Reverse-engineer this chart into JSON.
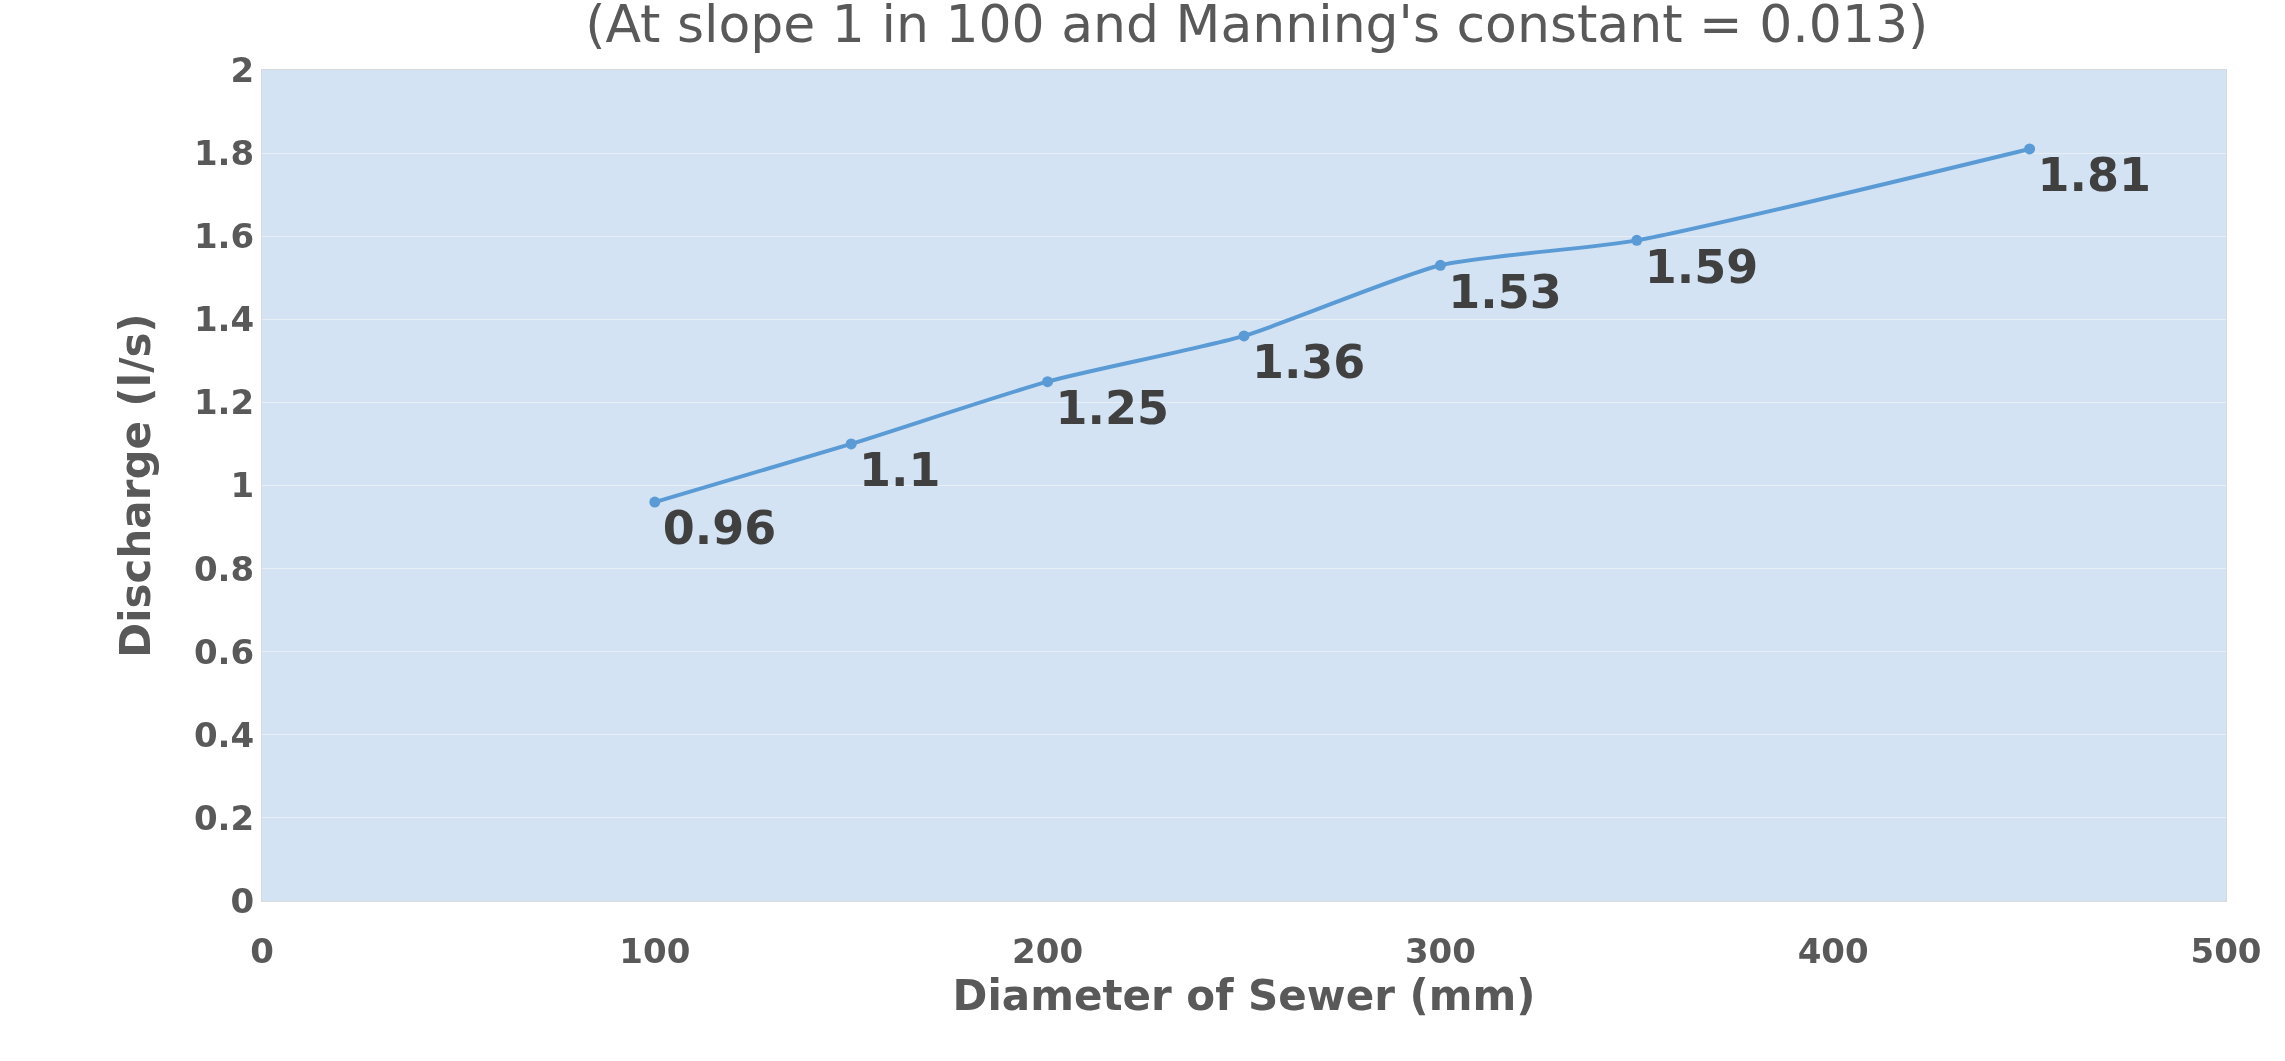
{
  "chart_data": {
    "type": "line",
    "title": "(At slope 1 in 100 and Manning's constant = 0.013)",
    "xlabel": "Diameter of Sewer (mm)",
    "ylabel": "Discharge (l/s)",
    "x": [
      100,
      150,
      200,
      250,
      300,
      350,
      450
    ],
    "series": [
      {
        "color": "#5b9bd5",
        "values": [
          0.96,
          1.1,
          1.25,
          1.36,
          1.53,
          1.59,
          1.81
        ]
      }
    ],
    "xlim": [
      0,
      500
    ],
    "xticks": [
      0,
      100,
      200,
      300,
      400,
      500
    ],
    "ylim": [
      0,
      2
    ],
    "yticks": [
      0,
      0.2,
      0.4,
      0.6,
      0.8,
      1,
      1.2,
      1.4,
      1.6,
      1.8,
      2
    ],
    "grid": "y",
    "marker": "circle",
    "line_style": "solid",
    "data_labels": true
  }
}
